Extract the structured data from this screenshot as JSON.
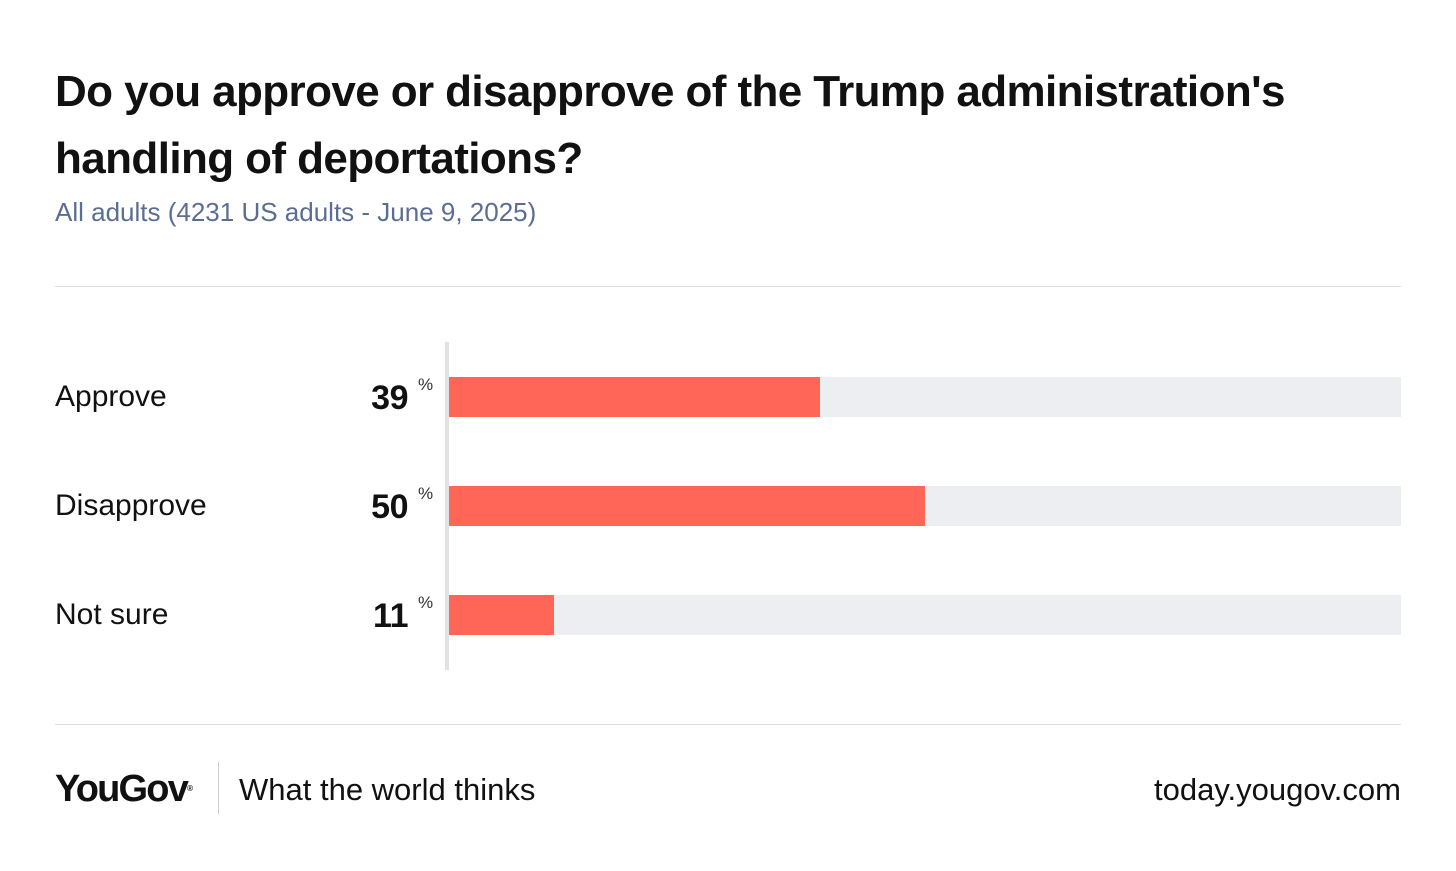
{
  "title": "Do you approve or disapprove of the Trump administration's handling of deportations?",
  "subtitle": "All adults (4231 US adults - June 9, 2025)",
  "chart_data": {
    "type": "bar",
    "orientation": "horizontal",
    "categories": [
      "Approve",
      "Disapprove",
      "Not sure"
    ],
    "values": [
      39,
      50,
      11
    ],
    "value_suffix": "%",
    "xlim": [
      0,
      100
    ],
    "bar_color": "#ff6658",
    "track_color": "#edeef1",
    "grid": false
  },
  "footer": {
    "brand": "YouGov",
    "brand_mark": "®",
    "tagline": "What the world thinks",
    "site": "today.yougov.com"
  }
}
